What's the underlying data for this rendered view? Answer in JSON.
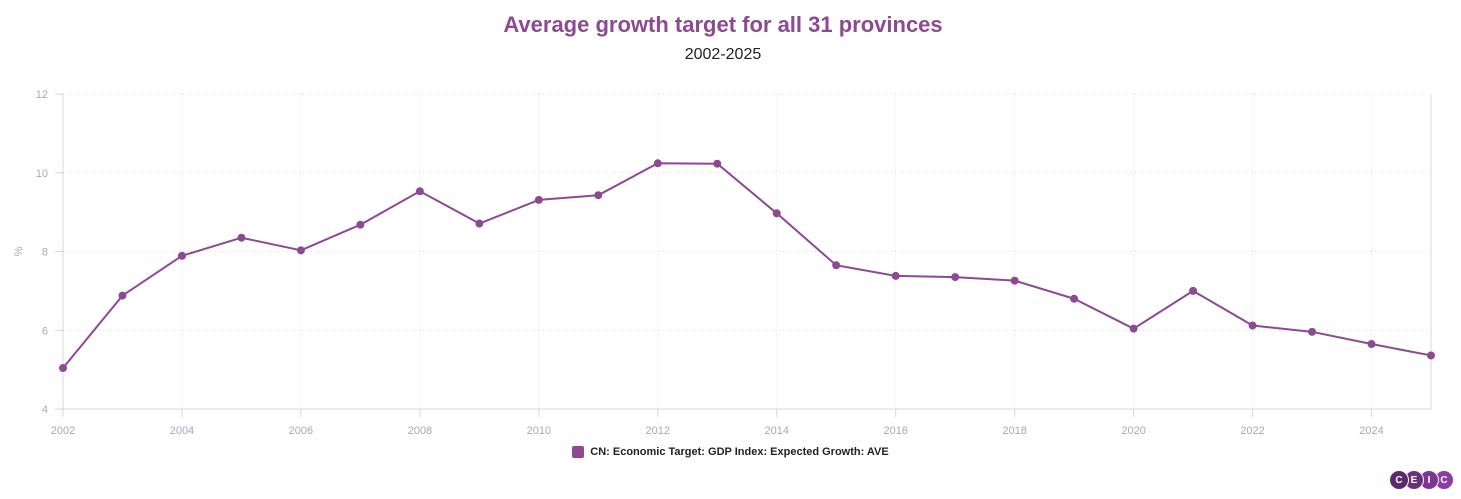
{
  "chart_data": {
    "type": "line",
    "title": "Average growth target for all 31 provinces",
    "subtitle": "2002-2025",
    "xlabel": "",
    "ylabel": "%",
    "x": [
      2002,
      2003,
      2004,
      2005,
      2006,
      2007,
      2008,
      2009,
      2010,
      2011,
      2012,
      2013,
      2014,
      2015,
      2016,
      2017,
      2018,
      2019,
      2020,
      2021,
      2022,
      2023,
      2024,
      2025
    ],
    "series": [
      {
        "name": "CN: Economic Target: GDP Index: Expected Growth: AVE",
        "color": "#8b4a92",
        "values": [
          5.04,
          6.88,
          7.89,
          8.35,
          8.03,
          8.68,
          9.53,
          8.71,
          9.31,
          9.43,
          10.24,
          10.23,
          8.97,
          7.65,
          7.38,
          7.35,
          7.26,
          6.8,
          6.04,
          7.0,
          6.12,
          5.96,
          5.65,
          5.36
        ]
      }
    ],
    "xlim": [
      2002,
      2025
    ],
    "ylim": [
      4,
      12
    ],
    "x_ticks": [
      "2002",
      "2004",
      "2006",
      "2008",
      "2010",
      "2012",
      "2014",
      "2016",
      "2018",
      "2020",
      "2022",
      "2024"
    ],
    "y_ticks": [
      "4",
      "6",
      "8",
      "10",
      "12"
    ],
    "grid": true,
    "legend_position": "bottom-center"
  },
  "branding": {
    "logo_letters": [
      "C",
      "E",
      "I",
      "C"
    ],
    "logo_colors": [
      "#5b2a6e",
      "#6c2f80",
      "#7d3592",
      "#8e3ca3"
    ]
  }
}
